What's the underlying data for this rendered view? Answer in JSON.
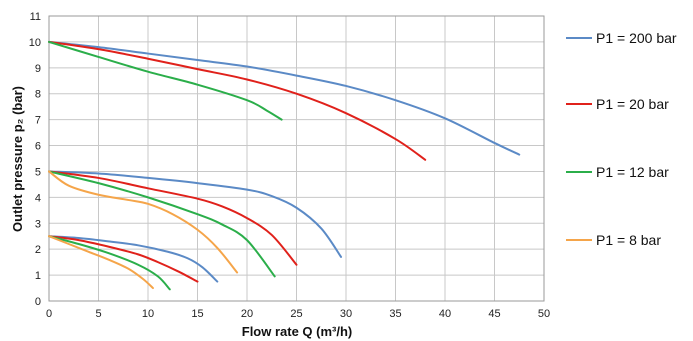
{
  "chart_data": {
    "type": "line",
    "title": "",
    "xlabel": "Flow rate Q (m³/h)",
    "ylabel": "Outlet pressure p₂ (bar)",
    "xlim": [
      0,
      50
    ],
    "ylim": [
      0,
      11
    ],
    "x_ticks": [
      "0",
      "5",
      "10",
      "15",
      "20",
      "25",
      "30",
      "35",
      "40",
      "45",
      "50"
    ],
    "y_ticks": [
      "0",
      "1",
      "2",
      "3",
      "4",
      "5",
      "6",
      "7",
      "8",
      "9",
      "10",
      "11"
    ],
    "grid": true,
    "legend_position": "right",
    "series": [
      {
        "name": "P1 = 200 bar",
        "color": "#5b8ac6",
        "curves": [
          [
            [
              0,
              10
            ],
            [
              5,
              9.8
            ],
            [
              10,
              9.55
            ],
            [
              15,
              9.3
            ],
            [
              20,
              9.05
            ],
            [
              25,
              8.7
            ],
            [
              30,
              8.3
            ],
            [
              35,
              7.75
            ],
            [
              40,
              7.05
            ],
            [
              45,
              6.1
            ],
            [
              47.5,
              5.65
            ]
          ],
          [
            [
              0,
              5
            ],
            [
              5,
              4.92
            ],
            [
              10,
              4.75
            ],
            [
              15,
              4.55
            ],
            [
              20,
              4.3
            ],
            [
              22.5,
              4.05
            ],
            [
              25,
              3.6
            ],
            [
              27.5,
              2.8
            ],
            [
              29.5,
              1.7
            ]
          ],
          [
            [
              0,
              2.5
            ],
            [
              3,
              2.43
            ],
            [
              6,
              2.3
            ],
            [
              9,
              2.15
            ],
            [
              12,
              1.9
            ],
            [
              14,
              1.65
            ],
            [
              15.5,
              1.3
            ],
            [
              17,
              0.75
            ]
          ]
        ]
      },
      {
        "name": "P1 = 20 bar",
        "color": "#e0211b",
        "curves": [
          [
            [
              0,
              10
            ],
            [
              5,
              9.72
            ],
            [
              10,
              9.35
            ],
            [
              15,
              8.95
            ],
            [
              20,
              8.55
            ],
            [
              25,
              8.0
            ],
            [
              30,
              7.25
            ],
            [
              35,
              6.25
            ],
            [
              38,
              5.45
            ]
          ],
          [
            [
              0,
              5
            ],
            [
              5,
              4.75
            ],
            [
              10,
              4.35
            ],
            [
              15,
              3.95
            ],
            [
              17.5,
              3.65
            ],
            [
              20,
              3.2
            ],
            [
              22.5,
              2.55
            ],
            [
              25,
              1.4
            ]
          ],
          [
            [
              0,
              2.5
            ],
            [
              3,
              2.35
            ],
            [
              6,
              2.1
            ],
            [
              9,
              1.8
            ],
            [
              11,
              1.5
            ],
            [
              13,
              1.15
            ],
            [
              15,
              0.75
            ]
          ]
        ]
      },
      {
        "name": "P1 = 12 bar",
        "color": "#2bae4a",
        "curves": [
          [
            [
              0,
              10
            ],
            [
              5,
              9.42
            ],
            [
              10,
              8.85
            ],
            [
              15,
              8.35
            ],
            [
              20,
              7.75
            ],
            [
              22,
              7.35
            ],
            [
              23.5,
              7.0
            ]
          ],
          [
            [
              0,
              5
            ],
            [
              5,
              4.55
            ],
            [
              10,
              4.0
            ],
            [
              15,
              3.35
            ],
            [
              17.5,
              2.95
            ],
            [
              20,
              2.35
            ],
            [
              22.8,
              0.95
            ]
          ],
          [
            [
              0,
              2.5
            ],
            [
              3,
              2.2
            ],
            [
              6,
              1.85
            ],
            [
              9,
              1.4
            ],
            [
              11,
              0.95
            ],
            [
              12.2,
              0.45
            ]
          ]
        ]
      },
      {
        "name": "P1 = 8 bar",
        "color": "#f5a54a",
        "curves": [
          [
            [
              0,
              5
            ],
            [
              2,
              4.45
            ],
            [
              5,
              4.1
            ],
            [
              8,
              3.9
            ],
            [
              10,
              3.75
            ],
            [
              12.5,
              3.35
            ],
            [
              15,
              2.75
            ],
            [
              17,
              2.05
            ],
            [
              19,
              1.1
            ]
          ],
          [
            [
              0,
              2.5
            ],
            [
              2,
              2.2
            ],
            [
              4,
              1.9
            ],
            [
              6,
              1.6
            ],
            [
              8,
              1.25
            ],
            [
              9.5,
              0.85
            ],
            [
              10.5,
              0.5
            ]
          ]
        ]
      }
    ]
  }
}
